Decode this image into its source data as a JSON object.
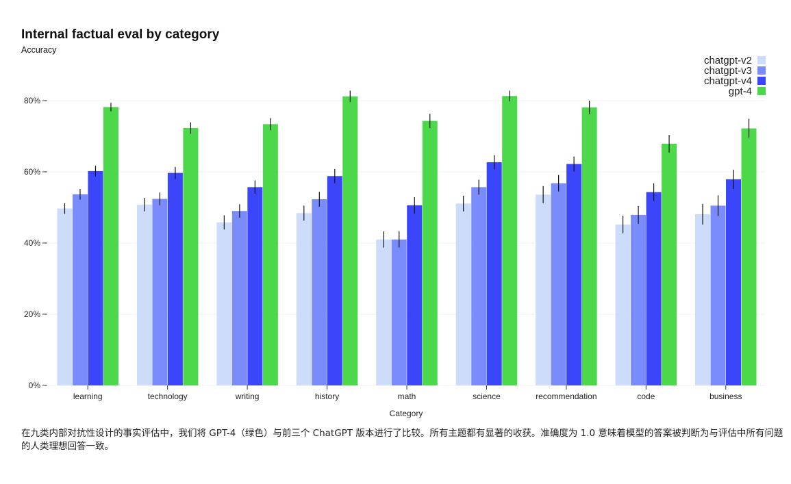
{
  "chart_data": {
    "type": "bar",
    "title": "Internal factual eval by category",
    "ylabel": "Accuracy",
    "xlabel": "Category",
    "ylim": [
      0,
      0.9
    ],
    "yticks": [
      0,
      0.2,
      0.4,
      0.6,
      0.8
    ],
    "ytick_labels": [
      "0%",
      "20%",
      "40%",
      "60%",
      "80%"
    ],
    "grid": true,
    "legend_position": "top-right",
    "categories": [
      "learning",
      "technology",
      "writing",
      "history",
      "math",
      "science",
      "recommendation",
      "code",
      "business"
    ],
    "series": [
      {
        "name": "chatgpt-v2",
        "color": "#cddcfb",
        "values": [
          0.497,
          0.508,
          0.458,
          0.484,
          0.41,
          0.511,
          0.536,
          0.452,
          0.481
        ],
        "errors": [
          0.015,
          0.019,
          0.02,
          0.021,
          0.023,
          0.022,
          0.024,
          0.025,
          0.029
        ]
      },
      {
        "name": "chatgpt-v3",
        "color": "#7a8cfc",
        "values": [
          0.537,
          0.524,
          0.49,
          0.523,
          0.41,
          0.557,
          0.568,
          0.479,
          0.505
        ],
        "errors": [
          0.015,
          0.018,
          0.019,
          0.021,
          0.023,
          0.021,
          0.023,
          0.025,
          0.029
        ]
      },
      {
        "name": "chatgpt-v4",
        "color": "#3b46fb",
        "values": [
          0.602,
          0.597,
          0.557,
          0.588,
          0.506,
          0.627,
          0.622,
          0.543,
          0.579
        ],
        "errors": [
          0.015,
          0.017,
          0.019,
          0.02,
          0.023,
          0.02,
          0.021,
          0.025,
          0.027
        ]
      },
      {
        "name": "gpt-4",
        "color": "#4cd84a",
        "values": [
          0.782,
          0.723,
          0.734,
          0.812,
          0.743,
          0.813,
          0.781,
          0.679,
          0.722
        ],
        "errors": [
          0.012,
          0.016,
          0.017,
          0.016,
          0.02,
          0.015,
          0.019,
          0.025,
          0.027
        ]
      }
    ]
  },
  "caption": "在九类内部对抗性设计的事实评估中，我们将 GPT-4（绿色）与前三个 ChatGPT 版本进行了比较。所有主题都有显著的收获。准确度为 1.0 意味着模型的答案被判断为与评估中所有问题的人类理想回答一致。"
}
